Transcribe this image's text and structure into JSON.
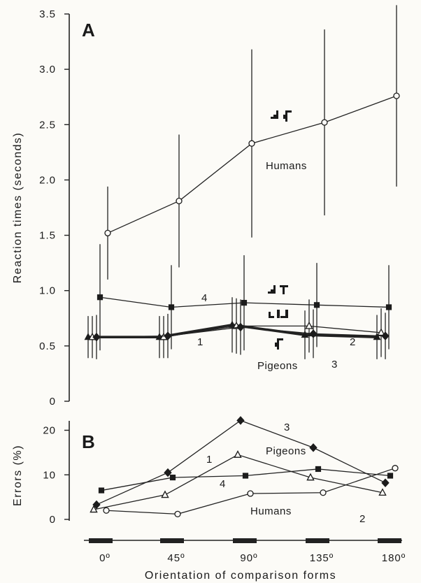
{
  "chart_data": [
    {
      "type": "line",
      "panel_label": "A",
      "ylabel": "Reaction times (seconds)",
      "ylim": [
        0,
        3.5
      ],
      "yticks": [
        "0",
        "0.5",
        "1.0",
        "1.5",
        "2.0",
        "2.5",
        "3.0",
        "3.5"
      ],
      "x": [
        0,
        45,
        90,
        135,
        180
      ],
      "annotations": {
        "humans": "Humans",
        "pigeons": "Pigeons"
      },
      "series": [
        {
          "label": "",
          "group": "humans",
          "marker": "open-circle",
          "values": [
            1.52,
            1.81,
            2.33,
            2.52,
            2.76
          ],
          "error": [
            0.42,
            0.6,
            0.85,
            0.84,
            0.82
          ]
        },
        {
          "label": "1",
          "group": "pigeons",
          "marker": "filled-triangle",
          "values": [
            0.58,
            0.58,
            0.69,
            0.6,
            0.58
          ],
          "error": [
            0.19,
            0.19,
            0.25,
            0.22,
            0.2
          ]
        },
        {
          "label": "2",
          "group": "pigeons",
          "marker": "open-triangle",
          "values": [
            0.58,
            0.58,
            0.68,
            0.68,
            0.62
          ],
          "error": [
            0.19,
            0.19,
            0.25,
            0.24,
            0.22
          ]
        },
        {
          "label": "3",
          "group": "pigeons",
          "marker": "filled-diamond",
          "values": [
            0.58,
            0.59,
            0.67,
            0.61,
            0.59
          ],
          "error": [
            0.2,
            0.2,
            0.25,
            0.22,
            0.21
          ]
        },
        {
          "label": "4",
          "group": "pigeons",
          "marker": "filled-square",
          "values": [
            0.94,
            0.85,
            0.89,
            0.87,
            0.85
          ],
          "error": [
            0.48,
            0.38,
            0.43,
            0.38,
            0.38
          ]
        }
      ]
    },
    {
      "type": "line",
      "panel_label": "B",
      "ylabel": "Errors (%)",
      "ylim": [
        0,
        22
      ],
      "yticks": [
        "0",
        "10",
        "20"
      ],
      "x": [
        0,
        45,
        90,
        135,
        180
      ],
      "xticklabels": [
        "0º",
        "45º",
        "90º",
        "135º",
        "180º"
      ],
      "xlabel": "Orientation of comparison forms",
      "annotations": {
        "humans": "Humans",
        "pigeons": "Pigeons"
      },
      "series": [
        {
          "label": "",
          "group": "humans",
          "marker": "open-circle",
          "values": [
            2,
            1.2,
            5.8,
            6,
            11.5
          ]
        },
        {
          "label": "1",
          "group": "pigeons",
          "marker": "filled-triangle",
          "values": [
            2.2,
            5.5,
            14.5,
            9.4,
            6
          ]
        },
        {
          "label": "2",
          "group": "pigeons",
          "marker": "open-triangle",
          "values": [
            2.2,
            5.5,
            14.5,
            9.4,
            6
          ]
        },
        {
          "label": "3",
          "group": "pigeons",
          "marker": "filled-diamond",
          "values": [
            3.3,
            10.5,
            22.2,
            16.1,
            8.2
          ]
        },
        {
          "label": "4",
          "group": "pigeons",
          "marker": "filled-square",
          "values": [
            6.5,
            9.4,
            9.8,
            11.3,
            9.8
          ]
        }
      ]
    }
  ]
}
